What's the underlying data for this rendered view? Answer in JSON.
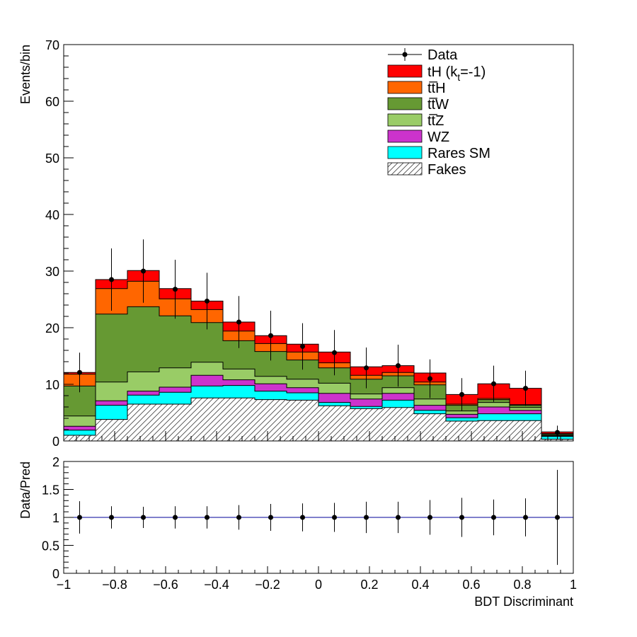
{
  "chart_data": [
    {
      "type": "bar",
      "stacked": true,
      "ylabel": "Events/bin",
      "xlim": [
        -1,
        1
      ],
      "ylim": [
        0,
        70
      ],
      "y_ticks": [
        0,
        10,
        20,
        30,
        40,
        50,
        60,
        70
      ],
      "bin_edges": [
        -1,
        -0.875,
        -0.75,
        -0.625,
        -0.5,
        -0.375,
        -0.25,
        -0.125,
        0,
        0.125,
        0.25,
        0.375,
        0.5,
        0.625,
        0.75,
        0.875,
        1
      ],
      "legend_position": "top-right",
      "series": [
        {
          "name": "Fakes",
          "key": "fakes",
          "color": "#ffffff",
          "hatch": true,
          "values": [
            1.0,
            3.8,
            6.5,
            6.5,
            7.6,
            7.6,
            7.3,
            7.2,
            6.2,
            5.7,
            5.9,
            4.8,
            3.5,
            3.6,
            3.6,
            0.3
          ]
        },
        {
          "name": "Rares SM",
          "key": "rares",
          "color": "#00ffff",
          "values": [
            0.9,
            2.5,
            1.6,
            2.1,
            2.1,
            2.2,
            1.5,
            1.3,
            0.6,
            0.4,
            1.3,
            0.6,
            0.6,
            1.2,
            1.2,
            0.5
          ]
        },
        {
          "name": "WZ",
          "key": "wz",
          "color": "#cc33cc",
          "values": [
            0.7,
            0.8,
            0.7,
            0.9,
            1.9,
            1.0,
            1.3,
            0.9,
            1.6,
            1.3,
            1.2,
            0.9,
            0.6,
            1.2,
            0.6,
            0.1
          ]
        },
        {
          "name": "tt̅Z",
          "key": "ttz",
          "color": "#99cc66",
          "values": [
            1.8,
            3.3,
            3.4,
            3.4,
            2.3,
            1.9,
            1.3,
            1.5,
            1.8,
            0.9,
            1.0,
            1.1,
            0.6,
            0.8,
            0.5,
            0.1
          ]
        },
        {
          "name": "tt̅W",
          "key": "ttw",
          "color": "#669933",
          "values": [
            5.3,
            12.0,
            11.5,
            9.2,
            7.0,
            5.0,
            4.4,
            3.4,
            2.7,
            2.6,
            2.1,
            2.5,
            1.0,
            0.5,
            0.4,
            0.2
          ]
        },
        {
          "name": "tt̅H",
          "key": "tth",
          "color": "#ff6600",
          "values": [
            2.1,
            4.5,
            4.5,
            3.0,
            2.3,
            1.7,
            1.4,
            1.4,
            0.9,
            0.7,
            0.6,
            0.5,
            0.2,
            0.2,
            0.1,
            0.1
          ]
        },
        {
          "name": "tH (k",
          "key": "th",
          "color": "#ff0000",
          "label_sub": "t",
          "label_tail": "=-1)",
          "values": [
            0.3,
            1.6,
            1.9,
            1.8,
            1.5,
            1.6,
            1.4,
            1.4,
            1.9,
            1.5,
            1.2,
            1.6,
            1.7,
            2.6,
            2.9,
            0.3
          ]
        }
      ],
      "data": {
        "name": "Data",
        "x": [
          -0.9375,
          -0.8125,
          -0.6875,
          -0.5625,
          -0.4375,
          -0.3125,
          -0.1875,
          -0.0625,
          0.0625,
          0.1875,
          0.3125,
          0.4375,
          0.5625,
          0.6875,
          0.8125,
          0.9375
        ],
        "y": [
          12.1,
          28.5,
          30.0,
          26.8,
          24.7,
          21.0,
          18.6,
          16.7,
          15.6,
          12.9,
          13.3,
          11.0,
          8.2,
          10.1,
          9.3,
          1.5
        ],
        "err": [
          3.5,
          5.5,
          5.6,
          5.2,
          5.0,
          4.6,
          4.4,
          4.1,
          4.0,
          3.6,
          3.7,
          3.4,
          2.9,
          3.2,
          3.1,
          1.2
        ]
      }
    },
    {
      "type": "scatter",
      "xlabel": "BDT Discriminant",
      "ylabel": "Data/Pred",
      "xlim": [
        -1,
        1
      ],
      "ylim": [
        0,
        2
      ],
      "x_ticks": [
        -1,
        -0.8,
        -0.6,
        -0.4,
        -0.2,
        0,
        0.2,
        0.4,
        0.6,
        0.8,
        1
      ],
      "x_tick_labels": [
        "−1",
        "−0.8",
        "−0.6",
        "−0.4",
        "−0.2",
        "0",
        "0.2",
        "0.4",
        "0.6",
        "0.8",
        "1"
      ],
      "y_ticks": [
        0,
        0.5,
        1,
        1.5,
        2
      ],
      "y_tick_labels": [
        "0",
        "0.5",
        "1",
        "1.5",
        "2"
      ],
      "reference_line": 1,
      "reference_color": "#000099",
      "x": [
        -0.9375,
        -0.8125,
        -0.6875,
        -0.5625,
        -0.4375,
        -0.3125,
        -0.1875,
        -0.0625,
        0.0625,
        0.1875,
        0.3125,
        0.4375,
        0.5625,
        0.6875,
        0.8125,
        0.9375
      ],
      "y": [
        1,
        1,
        1,
        1,
        1,
        1,
        1,
        1,
        1,
        1,
        1,
        1,
        1,
        1,
        1,
        1
      ],
      "err": [
        0.29,
        0.2,
        0.19,
        0.2,
        0.2,
        0.22,
        0.24,
        0.25,
        0.26,
        0.28,
        0.28,
        0.31,
        0.35,
        0.32,
        0.34,
        0.85
      ]
    }
  ]
}
